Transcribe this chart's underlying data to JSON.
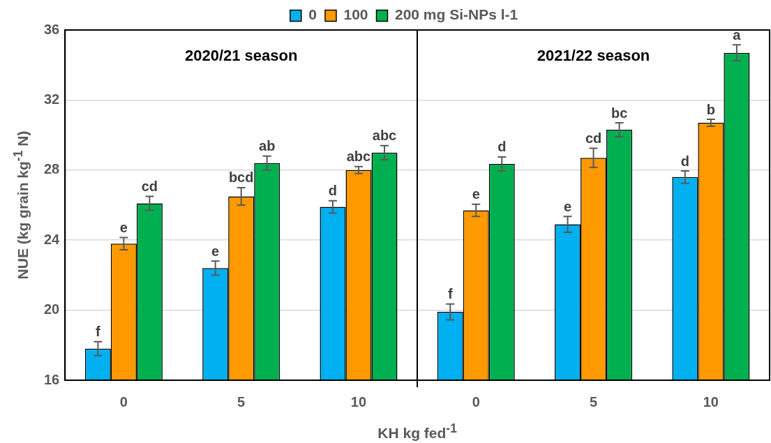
{
  "chart_data": {
    "type": "bar",
    "categories": [
      "0",
      "5",
      "10",
      "0",
      "5",
      "10"
    ],
    "xlabel": "KH kg fed$^{-1}$",
    "ylabel": "NUE (kg grain kg$^{-1}$ N)",
    "annotations": [
      "2020/21 season",
      "2021/22 season"
    ],
    "ylim": [
      16,
      36
    ],
    "yticks": [
      16,
      20,
      24,
      28,
      32,
      36
    ],
    "grid": "y",
    "legend": "top",
    "series": [
      {
        "name": "0",
        "color": "#00b0f0",
        "values": [
          17.8,
          22.4,
          25.9,
          19.9,
          24.9,
          27.6
        ],
        "errors": [
          0.4,
          0.4,
          0.35,
          0.45,
          0.45,
          0.35
        ],
        "value_labels": [
          "f",
          "e",
          "d",
          "f",
          "e",
          "d"
        ]
      },
      {
        "name": "100",
        "color": "#ff9900",
        "values": [
          23.8,
          26.5,
          28.0,
          25.7,
          28.7,
          30.7
        ],
        "errors": [
          0.35,
          0.5,
          0.2,
          0.35,
          0.55,
          0.2
        ],
        "value_labels": [
          "e",
          "bcd",
          "abc",
          "e",
          "cd",
          "b"
        ]
      },
      {
        "name": "200 mg Si-NPs l-1",
        "color": "#00b050",
        "values": [
          26.1,
          28.4,
          29.0,
          28.35,
          30.3,
          34.7
        ],
        "errors": [
          0.4,
          0.4,
          0.4,
          0.4,
          0.4,
          0.45
        ],
        "value_labels": [
          "cd",
          "ab",
          "abc",
          "d",
          "bc",
          "a"
        ]
      }
    ]
  }
}
